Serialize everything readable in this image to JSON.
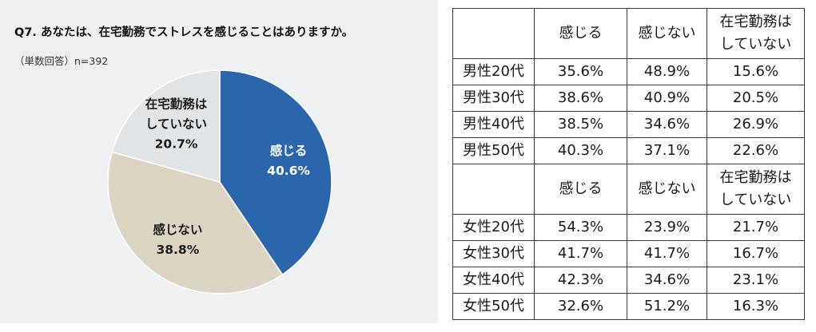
{
  "chart_data": [
    {
      "type": "pie",
      "title": "Q7. あなたは、在宅勤務でストレスを感じることはありますか。",
      "subtitle": "（単数回答）n=392",
      "slices": [
        {
          "label": "感じる",
          "value": 40.6,
          "value_label": "40.6%",
          "color": "#2b66ac",
          "text_color": "#ffffff"
        },
        {
          "label": "感じない",
          "value": 38.8,
          "value_label": "38.8%",
          "color": "#dcd5c3",
          "text_color": "#1e1e1e"
        },
        {
          "label": "在宅勤務は\nしていない",
          "value": 20.7,
          "value_label": "20.7%",
          "color": "#e1e5e8",
          "text_color": "#1e1e1e"
        }
      ]
    },
    {
      "type": "table",
      "groups": [
        {
          "columns": [
            "感じる",
            "感じない",
            "在宅勤務は\nしていない"
          ],
          "rows": [
            {
              "label": "男性20代",
              "cells": [
                "35.6%",
                "48.9%",
                "15.6%"
              ]
            },
            {
              "label": "男性30代",
              "cells": [
                "38.6%",
                "40.9%",
                "20.5%"
              ]
            },
            {
              "label": "男性40代",
              "cells": [
                "38.5%",
                "34.6%",
                "26.9%"
              ]
            },
            {
              "label": "男性50代",
              "cells": [
                "40.3%",
                "37.1%",
                "22.6%"
              ]
            }
          ]
        },
        {
          "columns": [
            "感じる",
            "感じない",
            "在宅勤務は\nしていない"
          ],
          "rows": [
            {
              "label": "女性20代",
              "cells": [
                "54.3%",
                "23.9%",
                "21.7%"
              ]
            },
            {
              "label": "女性30代",
              "cells": [
                "41.7%",
                "41.7%",
                "16.7%"
              ]
            },
            {
              "label": "女性40代",
              "cells": [
                "42.3%",
                "34.6%",
                "23.1%"
              ]
            },
            {
              "label": "女性50代",
              "cells": [
                "32.6%",
                "51.2%",
                "16.3%"
              ]
            }
          ]
        }
      ]
    }
  ]
}
